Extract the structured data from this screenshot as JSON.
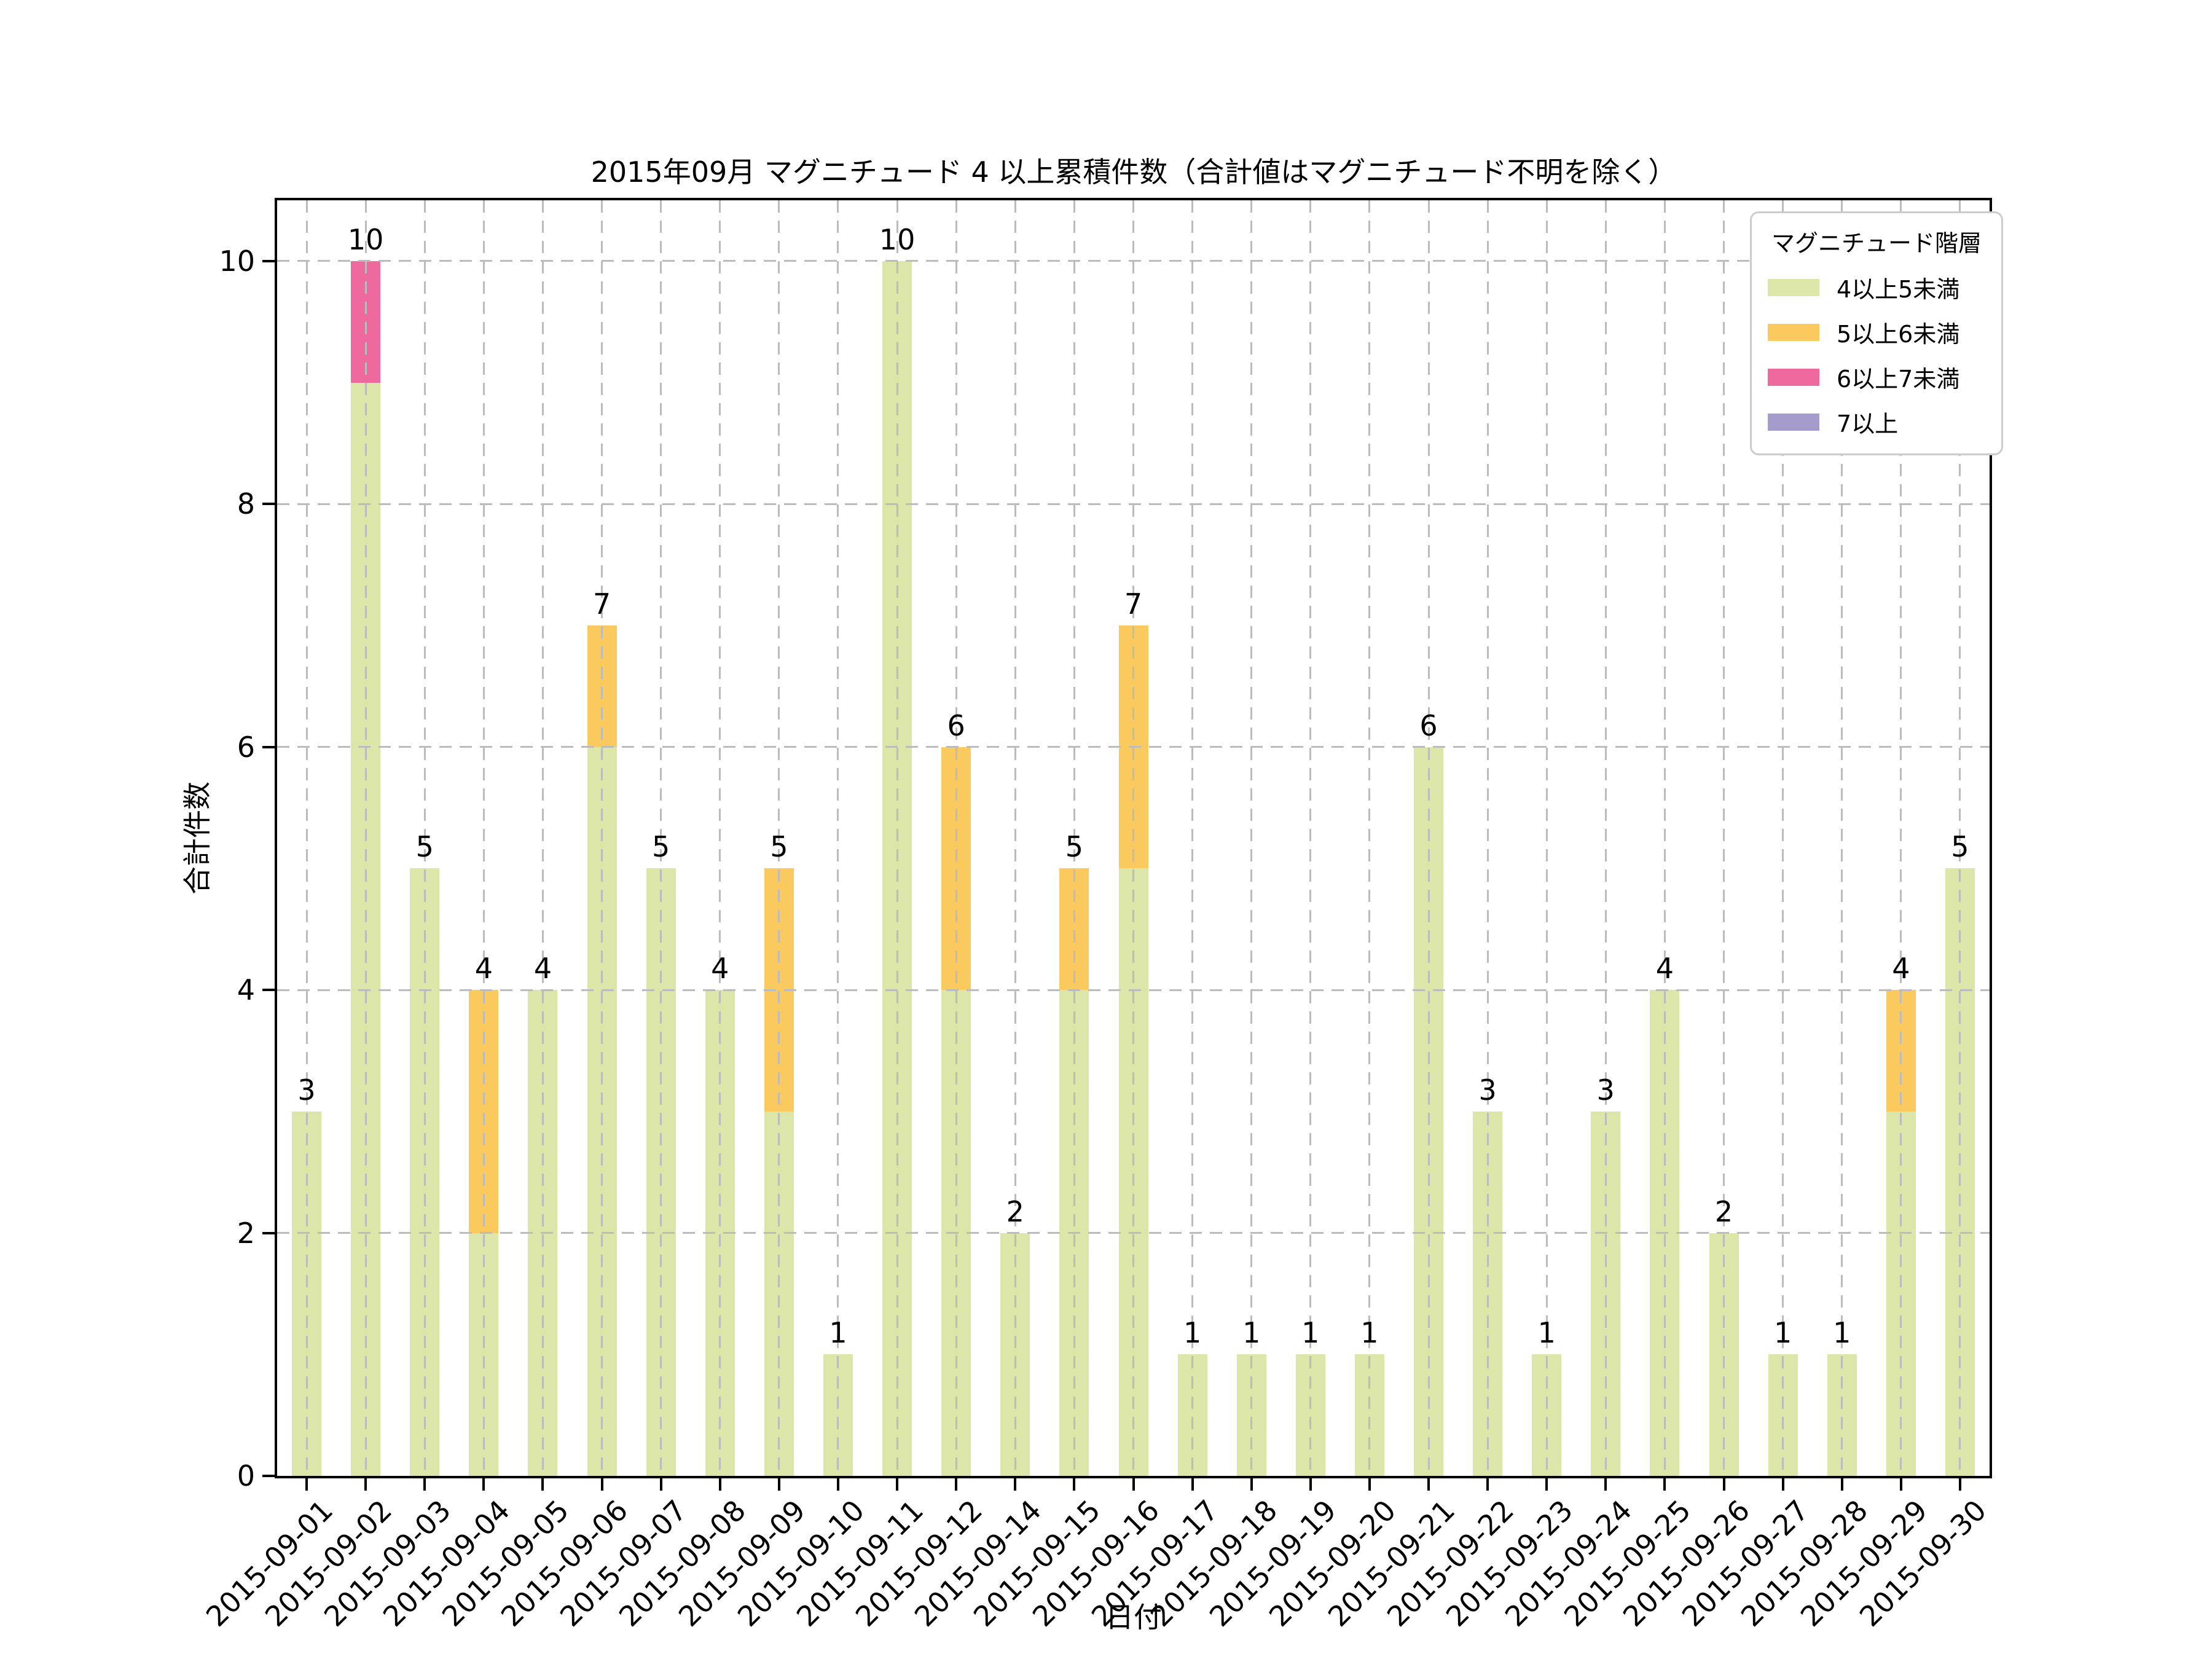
{
  "chart_data": {
    "type": "bar",
    "stacked": true,
    "title": "2015年09月 マグニチュード 4 以上累積件数（合計値はマグニチュード不明を除く）",
    "xlabel": "日付",
    "ylabel": "合計件数",
    "legend_title": "マグニチュード階層",
    "legend_position": "top-right",
    "grid": true,
    "ylim": [
      0,
      10.5
    ],
    "yticks": [
      0,
      2,
      4,
      6,
      8,
      10
    ],
    "categories": [
      "2015-09-01",
      "2015-09-02",
      "2015-09-03",
      "2015-09-04",
      "2015-09-05",
      "2015-09-06",
      "2015-09-07",
      "2015-09-08",
      "2015-09-09",
      "2015-09-10",
      "2015-09-11",
      "2015-09-12",
      "2015-09-14",
      "2015-09-15",
      "2015-09-16",
      "2015-09-17",
      "2015-09-18",
      "2015-09-19",
      "2015-09-20",
      "2015-09-21",
      "2015-09-22",
      "2015-09-23",
      "2015-09-24",
      "2015-09-25",
      "2015-09-26",
      "2015-09-27",
      "2015-09-28",
      "2015-09-29",
      "2015-09-30"
    ],
    "series": [
      {
        "name": "4以上5未満",
        "color": "#dce6a8",
        "values": [
          3,
          9,
          5,
          2,
          4,
          6,
          5,
          4,
          3,
          1,
          10,
          4,
          2,
          4,
          5,
          1,
          1,
          1,
          1,
          6,
          3,
          1,
          3,
          4,
          2,
          1,
          1,
          3,
          5
        ]
      },
      {
        "name": "5以上6未満",
        "color": "#fbca5e",
        "values": [
          0,
          0,
          0,
          2,
          0,
          1,
          0,
          0,
          2,
          0,
          0,
          2,
          0,
          1,
          2,
          0,
          0,
          0,
          0,
          0,
          0,
          0,
          0,
          0,
          0,
          0,
          0,
          1,
          0
        ]
      },
      {
        "name": "6以上7未満",
        "color": "#ee699e",
        "values": [
          0,
          1,
          0,
          0,
          0,
          0,
          0,
          0,
          0,
          0,
          0,
          0,
          0,
          0,
          0,
          0,
          0,
          0,
          0,
          0,
          0,
          0,
          0,
          0,
          0,
          0,
          0,
          0,
          0
        ]
      },
      {
        "name": "7以上",
        "color": "#a59bcd",
        "values": [
          0,
          0,
          0,
          0,
          0,
          0,
          0,
          0,
          0,
          0,
          0,
          0,
          0,
          0,
          0,
          0,
          0,
          0,
          0,
          0,
          0,
          0,
          0,
          0,
          0,
          0,
          0,
          0,
          0
        ]
      }
    ],
    "totals": [
      3,
      10,
      5,
      4,
      4,
      7,
      5,
      4,
      5,
      1,
      10,
      6,
      2,
      5,
      7,
      1,
      1,
      1,
      1,
      6,
      3,
      1,
      3,
      4,
      2,
      1,
      1,
      4,
      5
    ]
  },
  "colors": {
    "grid": "#bcbcbc",
    "spine": "#000000",
    "background": "#ffffff",
    "text": "#000000"
  }
}
